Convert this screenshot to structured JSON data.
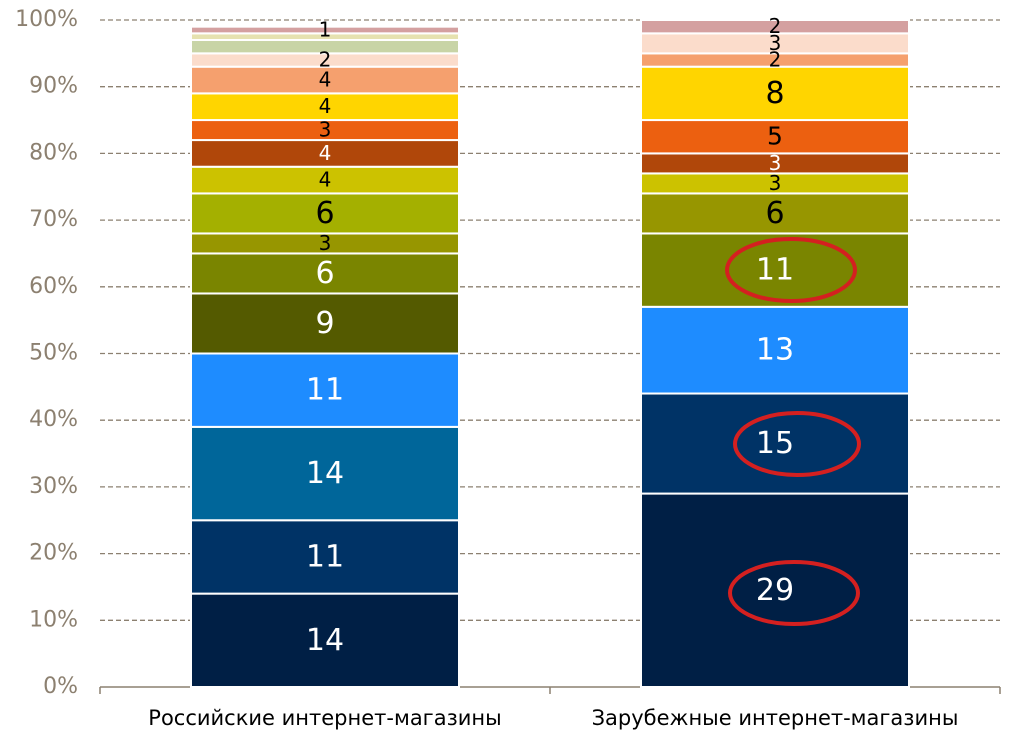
{
  "chart_data": {
    "type": "stacked_bar_100",
    "categories": [
      "Российские интернет-магазины",
      "Зарубежные интернет-магазины"
    ],
    "ylim": [
      0,
      100
    ],
    "yticks": [
      {
        "value": 0,
        "label": "0%"
      },
      {
        "value": 10,
        "label": "10%"
      },
      {
        "value": 20,
        "label": "20%"
      },
      {
        "value": 30,
        "label": "30%"
      },
      {
        "value": 40,
        "label": "40%"
      },
      {
        "value": 50,
        "label": "50%"
      },
      {
        "value": 60,
        "label": "60%"
      },
      {
        "value": 70,
        "label": "70%"
      },
      {
        "value": 80,
        "label": "80%"
      },
      {
        "value": 90,
        "label": "90%"
      },
      {
        "value": 100,
        "label": "100%"
      }
    ],
    "grid": true,
    "series": [
      {
        "color": "#001f45",
        "values": [
          14,
          29
        ]
      },
      {
        "color": "#003366",
        "values": [
          11,
          15
        ]
      },
      {
        "color": "#00669a",
        "values": [
          14,
          null
        ]
      },
      {
        "color": "#1e8cff",
        "values": [
          11,
          13
        ]
      },
      {
        "color": "#545a00",
        "values": [
          9,
          null
        ]
      },
      {
        "color": "#7a8500",
        "values": [
          6,
          11
        ]
      },
      {
        "color": "#979600",
        "values": [
          3,
          6
        ]
      },
      {
        "color": "#a4b000",
        "values": [
          6,
          null
        ]
      },
      {
        "color": "#ccc200",
        "values": [
          4,
          3
        ]
      },
      {
        "color": "#b0470a",
        "values": [
          4,
          3
        ]
      },
      {
        "color": "#ec6010",
        "values": [
          3,
          5
        ]
      },
      {
        "color": "#ffd500",
        "values": [
          4,
          8
        ]
      },
      {
        "color": "#f5a06e",
        "values": [
          4,
          2
        ]
      },
      {
        "color": "#fbdccb",
        "values": [
          2,
          3
        ]
      },
      {
        "color": "#c8d4a6",
        "values": [
          2,
          null
        ],
        "show_labels": false
      },
      {
        "color": "#e6e2b0",
        "values": [
          1,
          null
        ],
        "show_labels": false
      },
      {
        "color": "#d4a0a0",
        "values": [
          1,
          2
        ]
      }
    ]
  }
}
